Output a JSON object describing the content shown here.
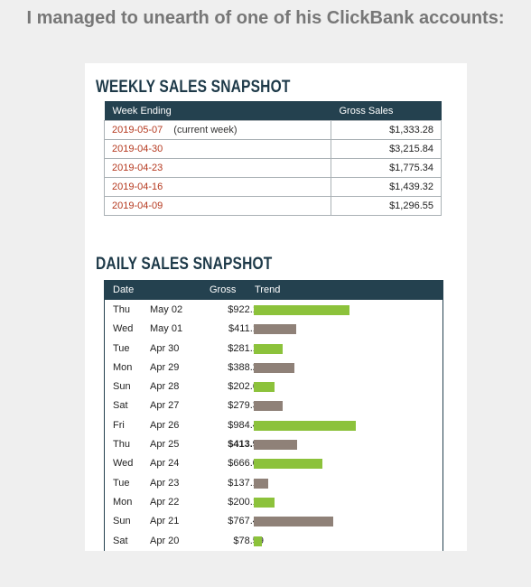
{
  "heading": "I managed to unearth of one of his ClickBank accounts:",
  "weekly": {
    "title": "WEEKLY SALES SNAPSHOT",
    "columns": [
      "Week Ending",
      "Gross Sales"
    ],
    "rows": [
      {
        "date": "2019-05-07",
        "note": "(current week)",
        "gross": "$1,333.28"
      },
      {
        "date": "2019-04-30",
        "note": "",
        "gross": "$3,215.84"
      },
      {
        "date": "2019-04-23",
        "note": "",
        "gross": "$1,775.34"
      },
      {
        "date": "2019-04-16",
        "note": "",
        "gross": "$1,439.32"
      },
      {
        "date": "2019-04-09",
        "note": "",
        "gross": "$1,296.55"
      }
    ]
  },
  "daily": {
    "title": "DAILY SALES SNAPSHOT",
    "columns": [
      "Date",
      "Gross",
      "Trend"
    ],
    "bar_colors": {
      "up": "#8cc23b",
      "down": "#8f8178"
    },
    "rows": [
      {
        "day": "Thu",
        "date": "May 02",
        "gross": "$922.14",
        "value": 922.14,
        "trend": "up",
        "bold": false
      },
      {
        "day": "Wed",
        "date": "May 01",
        "gross": "$411.14",
        "value": 411.14,
        "trend": "down",
        "bold": false
      },
      {
        "day": "Tue",
        "date": "Apr 30",
        "gross": "$281.19",
        "value": 281.19,
        "trend": "up",
        "bold": false
      },
      {
        "day": "Mon",
        "date": "Apr 29",
        "gross": "$388.27",
        "value": 388.27,
        "trend": "down",
        "bold": false
      },
      {
        "day": "Sun",
        "date": "Apr 28",
        "gross": "$202.60",
        "value": 202.6,
        "trend": "up",
        "bold": false
      },
      {
        "day": "Sat",
        "date": "Apr 27",
        "gross": "$279.34",
        "value": 279.34,
        "trend": "down",
        "bold": false
      },
      {
        "day": "Fri",
        "date": "Apr 26",
        "gross": "$984.41",
        "value": 984.41,
        "trend": "up",
        "bold": false
      },
      {
        "day": "Thu",
        "date": "Apr 25",
        "gross": "$413.95",
        "value": 413.95,
        "trend": "down",
        "bold": true
      },
      {
        "day": "Wed",
        "date": "Apr 24",
        "gross": "$666.08",
        "value": 666.08,
        "trend": "up",
        "bold": false
      },
      {
        "day": "Tue",
        "date": "Apr 23",
        "gross": "$137.19",
        "value": 137.19,
        "trend": "down",
        "bold": false
      },
      {
        "day": "Mon",
        "date": "Apr 22",
        "gross": "$200.16",
        "value": 200.16,
        "trend": "up",
        "bold": false
      },
      {
        "day": "Sun",
        "date": "Apr 21",
        "gross": "$767.49",
        "value": 767.49,
        "trend": "down",
        "bold": false
      },
      {
        "day": "Sat",
        "date": "Apr 20",
        "gross": "$78.59",
        "value": 78.59,
        "trend": "up",
        "bold": false
      }
    ]
  }
}
